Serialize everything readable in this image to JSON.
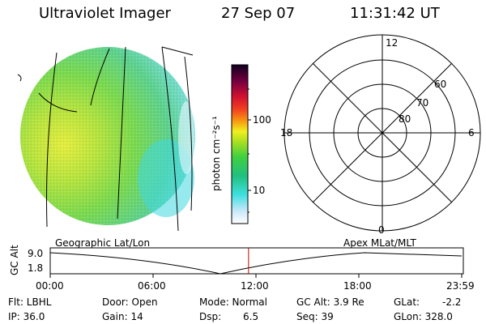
{
  "header": {
    "instrument": "Ultraviolet Imager",
    "date": "27 Sep 07",
    "time": "11:31:42 UT"
  },
  "colorbar": {
    "unit_label": "photon cm⁻²s⁻¹",
    "ticks": [
      "100",
      "10"
    ]
  },
  "polar_plot": {
    "mlt_labels": {
      "top": "12",
      "left": "18",
      "right": "6",
      "bottom": "0"
    },
    "lat_labels": [
      "60",
      "70",
      "80"
    ]
  },
  "timeline": {
    "ylabel": "GC Alt",
    "ytick_top": "9.0",
    "ytick_bottom": "1.8",
    "left_title": "Geographic Lat/Lon",
    "right_title": "Apex MLat/MLT",
    "xticks": [
      "00:00",
      "06:00",
      "12:00",
      "18:00",
      "23:59"
    ],
    "current_fraction": 0.482
  },
  "status": {
    "flt": "Flt: LBHL",
    "ip": "IP: 36.0",
    "door": "Door: Open",
    "gain": "Gain: 14",
    "mode": "Mode: Normal",
    "dsp_label": "Dsp:",
    "dsp_value": "6.5",
    "gcalt": "GC Alt: 3.9 Re",
    "seq": "Seq: 39",
    "glat_label": "GLat:",
    "glat_value": "-2.2",
    "glon": "GLon: 328.0"
  }
}
